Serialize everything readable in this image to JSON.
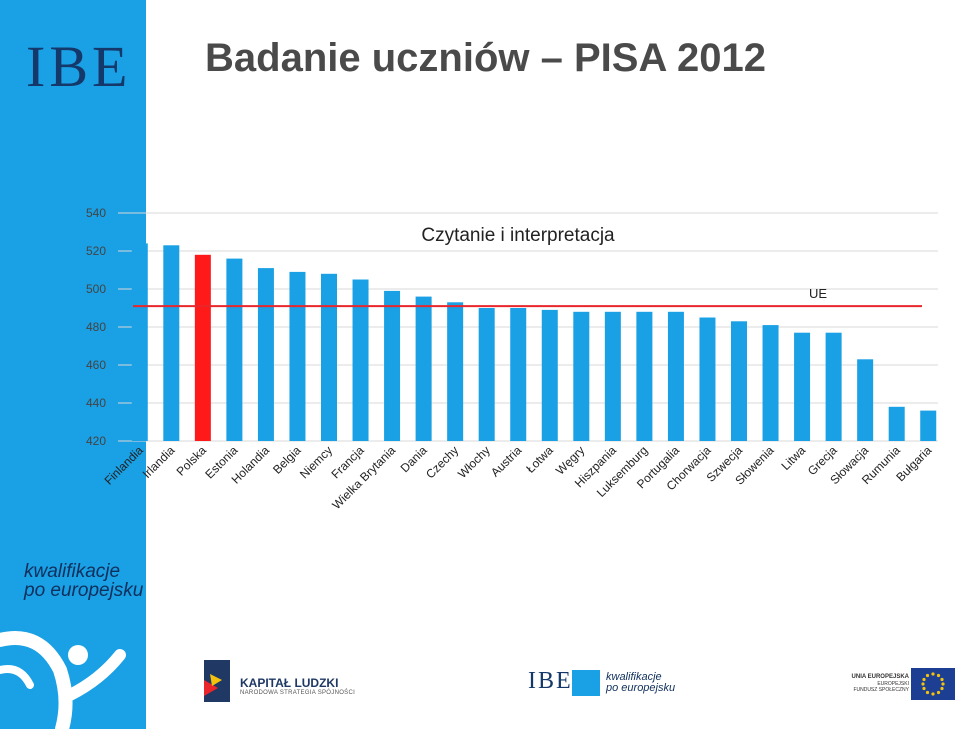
{
  "page": {
    "title": "Badanie uczniów – PISA 2012",
    "logo": "IBE",
    "tagline_line1": "kwalifikacje",
    "tagline_line2": "po europejsku"
  },
  "footer": {
    "kl_title": "KAPITAŁ LUDZKI",
    "kl_subtitle": "NARODOWA STRATEGIA SPÓJNOŚCI",
    "ibe_text": "IBE",
    "ibe_tag_line1": "kwalifikacje",
    "ibe_tag_line2": "po europejsku",
    "eu_line1": "UNIA EUROPEJSKA",
    "eu_line2": "EUROPEJSKI",
    "eu_line3": "FUNDUSZ SPOŁECZNY"
  },
  "colors": {
    "sidebar": "#1aa0e4",
    "bar": "#1aa0e4",
    "highlight": "#ff1a1a",
    "ue_line": "#e8262b",
    "title": "#4a4a4a"
  },
  "chart_data": {
    "type": "bar",
    "title": "Czytanie i interpretacja",
    "xlabel": "",
    "ylabel": "",
    "ylim": [
      420,
      540
    ],
    "yticks": [
      540,
      520,
      500,
      480,
      460,
      440,
      420
    ],
    "grid": true,
    "categories": [
      "Finlandia",
      "Irlandia",
      "Polska",
      "Estonia",
      "Holandia",
      "Belgia",
      "Niemcy",
      "Francja",
      "Wielka Brytania",
      "Dania",
      "Czechy",
      "Włochy",
      "Austria",
      "Łotwa",
      "Węgry",
      "Hiszpania",
      "Luksemburg",
      "Portugalia",
      "Chorwacja",
      "Szwecja",
      "Słowenia",
      "Litwa",
      "Grecja",
      "Słowacja",
      "Rumunia",
      "Bułgaria"
    ],
    "values": [
      524,
      523,
      518,
      516,
      511,
      509,
      508,
      505,
      499,
      496,
      493,
      490,
      490,
      489,
      488,
      488,
      488,
      488,
      485,
      483,
      481,
      477,
      477,
      463,
      438,
      436
    ],
    "highlight": "Polska",
    "reference_line": {
      "label": "UE",
      "value": 491
    }
  }
}
